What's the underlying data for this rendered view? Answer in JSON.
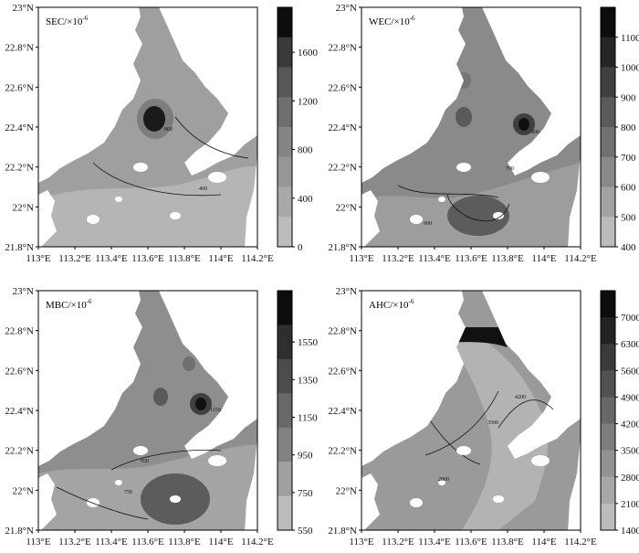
{
  "panels": [
    {
      "id": "sec",
      "title": "SEC/×10",
      "title_exp": "-6",
      "y_ticks": [
        "23°N",
        "22.8°N",
        "22.6°N",
        "22.4°N",
        "22.2°N",
        "22°N",
        "21.8°N"
      ],
      "x_ticks": [
        "113°E",
        "113.2°E",
        "113.4°E",
        "113.6°E",
        "113.8°E",
        "114°E",
        "114.2°E"
      ],
      "colorbar_labels": [
        "1600",
        "1200",
        "800",
        "400",
        "0"
      ],
      "colorbar_colors": [
        "#0d0d0d",
        "#3a3a3a",
        "#575757",
        "#6f6f6f",
        "#858585",
        "#979797",
        "#a9a9a9",
        "#bcbcbc"
      ]
    },
    {
      "id": "wec",
      "title": "WEC/×10",
      "title_exp": "-6",
      "y_ticks": [
        "23°N",
        "22.8°N",
        "22.6°N",
        "22.4°N",
        "22.2°N",
        "22°N",
        "21.8°N"
      ],
      "x_ticks": [
        "113°E",
        "113.2°E",
        "113.4°E",
        "113.6°E",
        "113.8°E",
        "114°E",
        "114.2°E"
      ],
      "colorbar_labels": [
        "1100",
        "1000",
        "900",
        "800",
        "700",
        "600",
        "500",
        "400"
      ],
      "colorbar_colors": [
        "#0d0d0d",
        "#262626",
        "#404040",
        "#5a5a5a",
        "#717171",
        "#898989",
        "#a2a2a2",
        "#bcbcbc"
      ]
    },
    {
      "id": "mbc",
      "title": "MBC/×10",
      "title_exp": "-6",
      "y_ticks": [
        "23°N",
        "22.8°N",
        "22.6°N",
        "22.4°N",
        "22.2°N",
        "22°N",
        "21.8°N"
      ],
      "x_ticks": [
        "113°E",
        "113.2°E",
        "113.4°E",
        "113.6°E",
        "113.8°E",
        "114°E",
        "114.2°E"
      ],
      "colorbar_labels": [
        "1550",
        "1350",
        "1150",
        "950",
        "750",
        "550"
      ],
      "colorbar_colors": [
        "#0d0d0d",
        "#2e2e2e",
        "#4c4c4c",
        "#686868",
        "#828282",
        "#a0a0a0",
        "#bcbcbc"
      ]
    },
    {
      "id": "ahc",
      "title": "AHC/×10",
      "title_exp": "-6",
      "y_ticks": [
        "23°N",
        "22.8°N",
        "22.6°N",
        "22.4°N",
        "22.2°N",
        "22°N",
        "21.8°N"
      ],
      "x_ticks": [
        "113°E",
        "113.2°E",
        "113.4°E",
        "113.6°E",
        "113.8°E",
        "114°E",
        "114.2°E"
      ],
      "colorbar_labels": [
        "7000",
        "6300",
        "5600",
        "4900",
        "4200",
        "3500",
        "2800",
        "2100",
        "1400"
      ],
      "colorbar_colors": [
        "#0d0d0d",
        "#232323",
        "#3a3a3a",
        "#515151",
        "#686868",
        "#7d7d7d",
        "#929292",
        "#a7a7a7",
        "#bcbcbc"
      ]
    }
  ],
  "contour_labels": {
    "sec": [
      "800",
      "400"
    ],
    "wec": [
      "700",
      "600",
      "800"
    ],
    "mbc": [
      "750",
      "950",
      "1150"
    ],
    "ahc": [
      "2800",
      "3500",
      "4200"
    ]
  }
}
